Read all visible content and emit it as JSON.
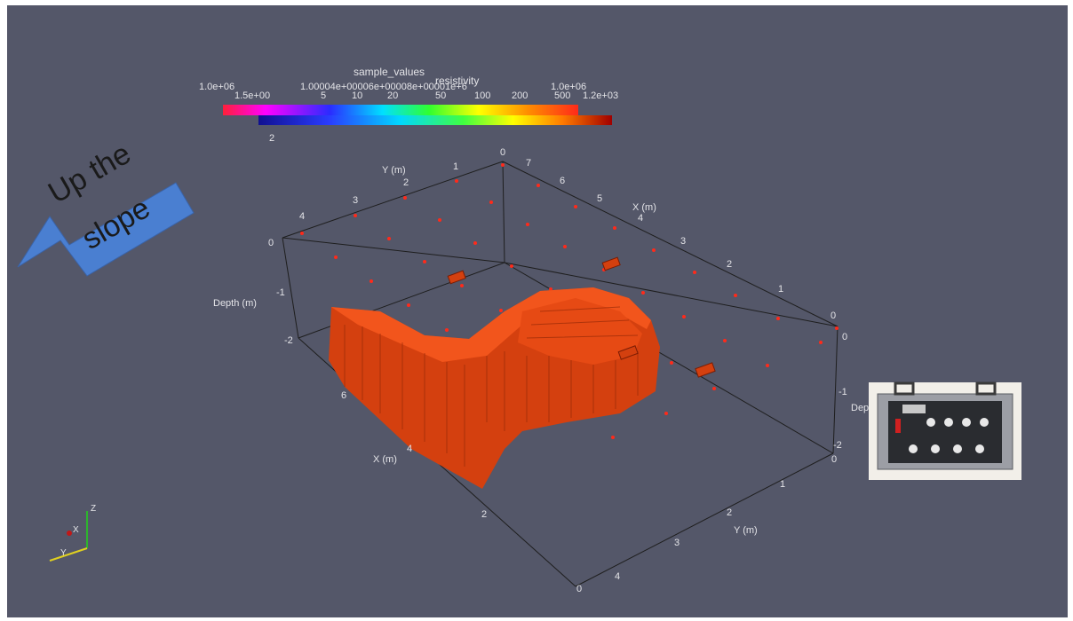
{
  "legend_top": {
    "title": "sample_values",
    "min_label": "1.0e+06",
    "max_label": "1.0e+06",
    "mid_labels": "1.00004e+00006e+00008e+00001e+6"
  },
  "legend_bottom": {
    "title": "resistivity",
    "min_label": "1.5e+00",
    "max_label": "1.2e+03",
    "ticks": [
      "5",
      "10",
      "20",
      "50",
      "100",
      "200",
      "500"
    ],
    "minor_label": "2"
  },
  "arrow": {
    "line1": "Up the",
    "line2": "slope",
    "color": "#4a7fd1"
  },
  "axes": {
    "top_y_title": "Y (m)",
    "top_x_title": "X (m)",
    "depth_title": "Depth (m)",
    "depth_title_right": "Dep",
    "bottom_x_title": "X (m)",
    "bottom_y_title": "Y (m)",
    "top_y_ticks": [
      "0",
      "1",
      "2",
      "3",
      "4"
    ],
    "top_x_ticks": [
      "7",
      "6",
      "5",
      "4",
      "3",
      "2",
      "1",
      "0"
    ],
    "depth_left_ticks": [
      "0",
      "-1",
      "-2"
    ],
    "depth_right_ticks": [
      "0",
      "-1",
      "-2"
    ],
    "bottom_x_ticks": [
      "6",
      "4",
      "2",
      "0"
    ],
    "bottom_y_ticks": [
      "0",
      "1",
      "2",
      "3",
      "4"
    ]
  },
  "orientation_axes": {
    "x": "X",
    "y": "Y",
    "z": "Z"
  },
  "colors": {
    "background": "#545769",
    "body": "#d4400f",
    "points": "#ff2a1a"
  }
}
